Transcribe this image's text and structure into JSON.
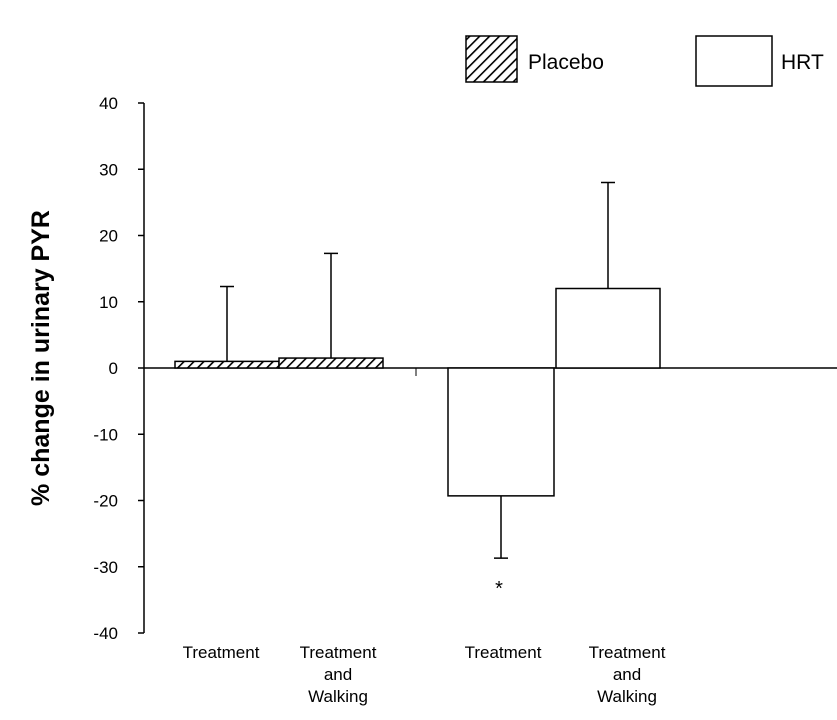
{
  "chart_data": {
    "type": "bar",
    "title": "",
    "xlabel": "",
    "ylabel": "% change in urinary PYR",
    "ylim": [
      -40,
      40
    ],
    "yticks": [
      40,
      30,
      20,
      10,
      0,
      -10,
      -20,
      -30,
      -40
    ],
    "ytick_labels": [
      "40",
      "30",
      "20",
      "10",
      "0",
      "-10",
      "-20",
      "-30",
      "-40"
    ],
    "legend_position": "top-right",
    "grid": false,
    "series": [
      {
        "name": "Placebo",
        "pattern": "hatched",
        "bars": [
          {
            "category": "Treatment",
            "value": 1.0,
            "error_to": 12.3
          },
          {
            "category": "Treatment and Walking",
            "value": 1.5,
            "error_to": 17.3
          }
        ]
      },
      {
        "name": "HRT",
        "pattern": "open",
        "bars": [
          {
            "category": "Treatment",
            "value": -19.3,
            "error_to": -28.7,
            "annotation": "*"
          },
          {
            "category": "Treatment and Walking",
            "value": 12.0,
            "error_to": 28.0
          }
        ]
      }
    ],
    "category_labels": [
      [
        "Treatment"
      ],
      [
        "Treatment",
        "and",
        "Walking"
      ],
      [
        "Treatment"
      ],
      [
        "Treatment",
        "and",
        "Walking"
      ]
    ],
    "colors": {
      "axis": "#000000",
      "bar_fill": "#ffffff",
      "bar_stroke": "#000000",
      "hatch": "#000000"
    }
  }
}
